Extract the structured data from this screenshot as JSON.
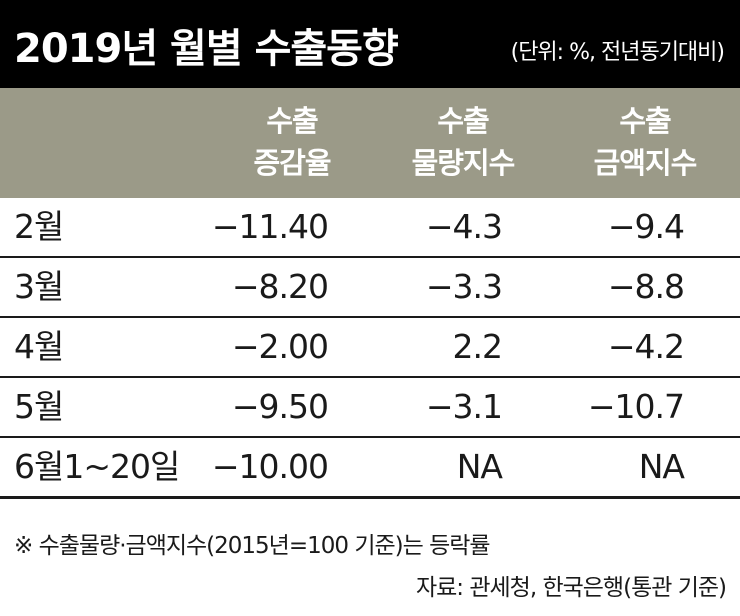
{
  "title": "2019년 월별 수출동향",
  "unit_note": "(단위: %, 전년동기대비)",
  "chart_data": {
    "type": "table",
    "columns": [
      [
        "수출",
        "증감율"
      ],
      [
        "수출",
        "물량지수"
      ],
      [
        "수출",
        "금액지수"
      ]
    ],
    "rows": [
      {
        "label": "2월",
        "values": [
          "−11.40",
          "−4.3",
          "−9.4"
        ]
      },
      {
        "label": "3월",
        "values": [
          "−8.20",
          "−3.3",
          "−8.8"
        ]
      },
      {
        "label": "4월",
        "values": [
          "−2.00",
          "2.2",
          "−4.2"
        ]
      },
      {
        "label": "5월",
        "values": [
          "−9.50",
          "−3.1",
          "−10.7"
        ]
      },
      {
        "label": "6월1~20일",
        "values": [
          "−10.00",
          "NA",
          "NA"
        ]
      }
    ]
  },
  "footnote": "※ 수출물량·금액지수(2015년=100 기준)는 등락률",
  "source": "자료: 관세청, 한국은행(통관 기준)"
}
